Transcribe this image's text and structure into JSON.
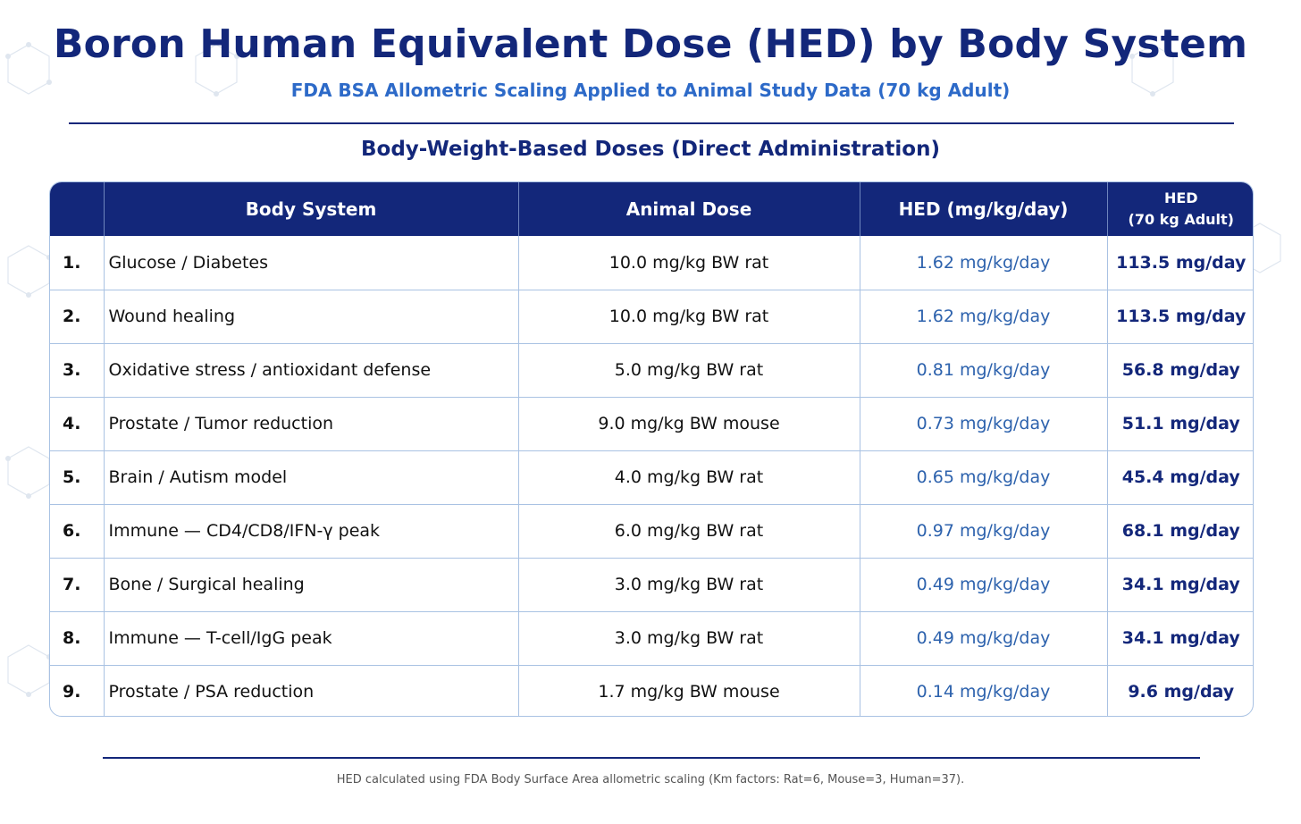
{
  "header": {
    "title": "Boron Human Equivalent Dose (HED) by Body System",
    "subtitle": "FDA BSA Allometric Scaling Applied to Animal Study Data (70 kg Adult)",
    "section_title": "Body-Weight-Based Doses (Direct Administration)"
  },
  "table": {
    "columns": {
      "index": "",
      "system": "Body System",
      "animal_dose": "Animal Dose",
      "hed": "HED (mg/kg/day)",
      "hed70_line1": "HED",
      "hed70_line2": "(70 kg Adult)"
    },
    "rows": [
      {
        "num": "1.",
        "system": "Glucose / Diabetes",
        "animal_dose": "10.0 mg/kg BW rat",
        "hed": "1.62 mg/kg/day",
        "hed70": "113.5 mg/day"
      },
      {
        "num": "2.",
        "system": "Wound healing",
        "animal_dose": "10.0 mg/kg BW rat",
        "hed": "1.62 mg/kg/day",
        "hed70": "113.5 mg/day"
      },
      {
        "num": "3.",
        "system": "Oxidative stress / antioxidant defense",
        "animal_dose": "5.0 mg/kg BW rat",
        "hed": "0.81 mg/kg/day",
        "hed70": "56.8 mg/day"
      },
      {
        "num": "4.",
        "system": "Prostate / Tumor reduction",
        "animal_dose": "9.0 mg/kg BW mouse",
        "hed": "0.73 mg/kg/day",
        "hed70": "51.1 mg/day"
      },
      {
        "num": "5.",
        "system": "Brain / Autism model",
        "animal_dose": "4.0 mg/kg BW rat",
        "hed": "0.65 mg/kg/day",
        "hed70": "45.4 mg/day"
      },
      {
        "num": "6.",
        "system": "Immune — CD4/CD8/IFN-γ peak",
        "animal_dose": "6.0 mg/kg BW rat",
        "hed": "0.97 mg/kg/day",
        "hed70": "68.1 mg/day"
      },
      {
        "num": "7.",
        "system": "Bone / Surgical healing",
        "animal_dose": "3.0 mg/kg BW rat",
        "hed": "0.49 mg/kg/day",
        "hed70": "34.1 mg/day"
      },
      {
        "num": "8.",
        "system": "Immune — T-cell/IgG peak",
        "animal_dose": "3.0 mg/kg BW rat",
        "hed": "0.49 mg/kg/day",
        "hed70": "34.1 mg/day"
      },
      {
        "num": "9.",
        "system": "Prostate / PSA reduction",
        "animal_dose": "1.7 mg/kg BW mouse",
        "hed": "0.14 mg/kg/day",
        "hed70": "9.6 mg/day"
      }
    ]
  },
  "footnote": "HED calculated using FDA Body Surface Area allometric scaling (Km factors: Rat=6, Mouse=3, Human=37).",
  "colors": {
    "navy": "#13277a",
    "accent_blue": "#2d6ac8",
    "hed_blue": "#2d62ad",
    "grid_line": "#a9c2e3"
  }
}
